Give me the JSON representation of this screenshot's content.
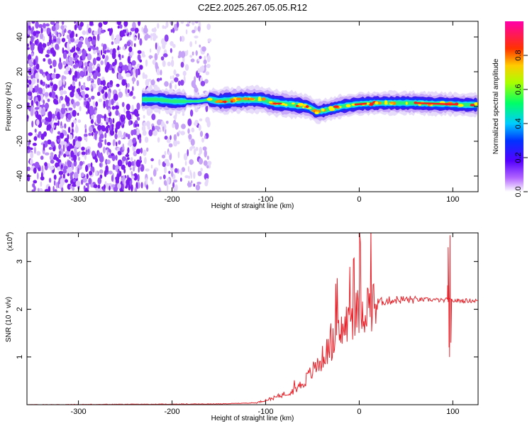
{
  "title": "C2E2.2025.267.05.05.R12",
  "chart_data": [
    {
      "type": "heatmap",
      "xlabel": "Height of straight line (km)",
      "ylabel": "Frequency (Hz)",
      "xlim": [
        -355,
        127
      ],
      "ylim": [
        -49,
        49
      ],
      "xticks": [
        -300,
        -200,
        -100,
        0,
        100
      ],
      "yticks": [
        -40,
        -20,
        0,
        20,
        40
      ],
      "colorbar": {
        "label": "Normalized spectral amplitude",
        "range": [
          0,
          1
        ],
        "ticks": [
          "0.0",
          "0.2",
          "0.4",
          "0.6",
          "0.8"
        ],
        "tick_values": [
          0.0,
          0.2,
          0.4,
          0.6,
          0.8
        ],
        "colors": [
          "#ffffff",
          "#8800ff",
          "#0000ff",
          "#00ffff",
          "#00ff00",
          "#ffff00",
          "#ff8800",
          "#ff0000",
          "#ff00ff"
        ]
      },
      "noise_region": {
        "x": [
          -355,
          -160
        ],
        "dense_until": -233
      },
      "ridge_center": [
        [
          -232,
          4
        ],
        [
          -215,
          4
        ],
        [
          -200,
          3
        ],
        [
          -185,
          3
        ],
        [
          -172,
          3
        ],
        [
          -160,
          4
        ],
        [
          -150,
          3
        ],
        [
          -140,
          3.5
        ],
        [
          -120,
          4
        ],
        [
          -105,
          4
        ],
        [
          -90,
          2
        ],
        [
          -70,
          1
        ],
        [
          -55,
          0
        ],
        [
          -45,
          -3
        ],
        [
          -35,
          -2
        ],
        [
          -20,
          0
        ],
        [
          0,
          1.5
        ],
        [
          20,
          2
        ],
        [
          40,
          2
        ],
        [
          60,
          2
        ],
        [
          80,
          1.5
        ],
        [
          95,
          1.5
        ],
        [
          110,
          1
        ],
        [
          127,
          1
        ]
      ]
    },
    {
      "type": "line",
      "xlabel": "Height of straight line (km)",
      "ylabel": "SNR (10 * v/v)",
      "scale_note": "(x10",
      "scale_exp": "4",
      "xlim": [
        -355,
        127
      ],
      "ylim": [
        0,
        36000
      ],
      "xticks": [
        -300,
        -200,
        -100,
        0,
        100
      ],
      "yticks": [
        1,
        2,
        3
      ],
      "series": [
        {
          "color": "#e8222a",
          "envelope": [
            [
              -355,
              0
            ],
            [
              -150,
              150
            ],
            [
              -110,
              400
            ],
            [
              -90,
              1500
            ],
            [
              -70,
              3000
            ],
            [
              -60,
              4500
            ],
            [
              -50,
              7000
            ],
            [
              -40,
              9500
            ],
            [
              -30,
              12500
            ],
            [
              -20,
              15000
            ],
            [
              -10,
              18000
            ],
            [
              0,
              19500
            ],
            [
              10,
              20800
            ],
            [
              20,
              21500
            ],
            [
              40,
              22000
            ],
            [
              60,
              22000
            ],
            [
              80,
              22000
            ],
            [
              90,
              21800
            ],
            [
              94,
              22000
            ],
            [
              100,
              21800
            ],
            [
              127,
              21800
            ]
          ],
          "spikes": [
            [
              95,
              33000
            ],
            [
              96,
              12000
            ],
            [
              97,
              35500
            ],
            [
              98,
              13000
            ],
            [
              94.5,
              25000
            ],
            [
              96.5,
              10000
            ]
          ]
        }
      ]
    }
  ]
}
